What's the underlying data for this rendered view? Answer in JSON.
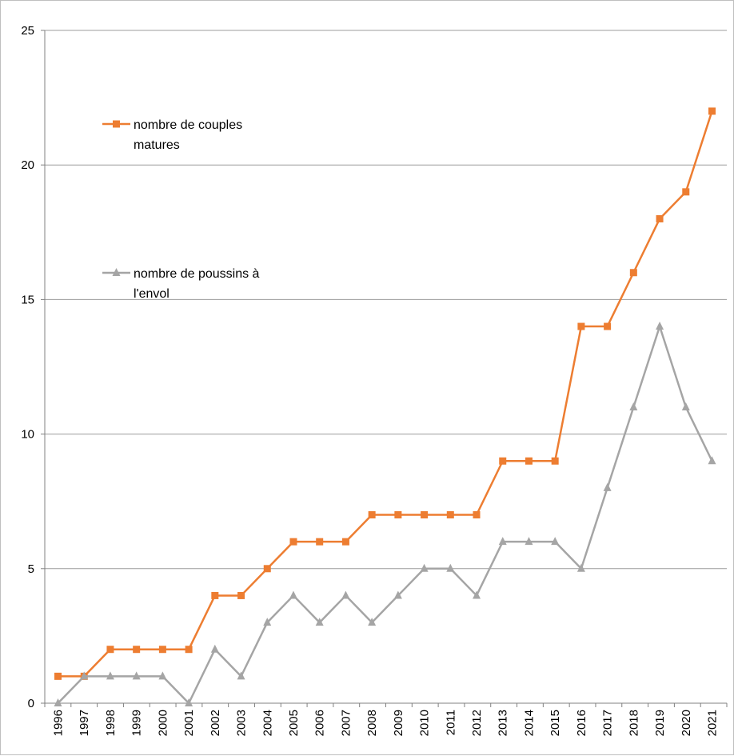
{
  "chart_data": {
    "type": "line",
    "x": [
      "1996",
      "1997",
      "1998",
      "1999",
      "2000",
      "2001",
      "2002",
      "2003",
      "2004",
      "2005",
      "2006",
      "2007",
      "2008",
      "2009",
      "2010",
      "2011",
      "2012",
      "2013",
      "2014",
      "2015",
      "2016",
      "2017",
      "2018",
      "2019",
      "2020",
      "2021"
    ],
    "ylim": [
      0,
      25
    ],
    "yticks": [
      "0",
      "5",
      "10",
      "15",
      "20",
      "25"
    ],
    "grid": "horizontal",
    "legend_position": "inside-left",
    "series": [
      {
        "name": "nombre de couples matures",
        "legend_lines": [
          "nombre de couples",
          "matures"
        ],
        "color": "#ED7D31",
        "marker": "square",
        "values": [
          1,
          1,
          2,
          2,
          2,
          2,
          4,
          4,
          5,
          6,
          6,
          6,
          7,
          7,
          7,
          7,
          7,
          9,
          9,
          9,
          14,
          14,
          16,
          18,
          19,
          22
        ]
      },
      {
        "name": "nombre de poussins à l'envol",
        "legend_lines": [
          "nombre de poussins à",
          "l'envol"
        ],
        "color": "#A5A5A5",
        "marker": "triangle",
        "values": [
          0,
          1,
          1,
          1,
          1,
          0,
          2,
          1,
          3,
          4,
          3,
          4,
          3,
          4,
          5,
          5,
          4,
          6,
          6,
          6,
          5,
          8,
          11,
          14,
          11,
          9
        ]
      }
    ]
  }
}
